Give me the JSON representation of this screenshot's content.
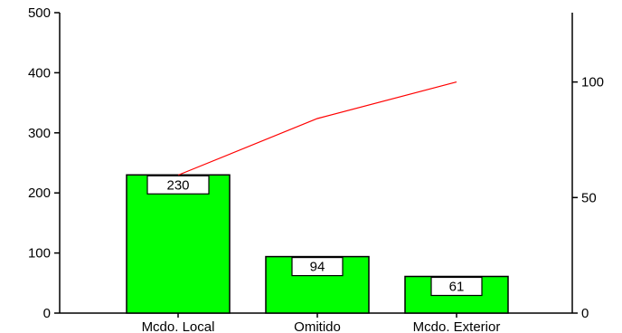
{
  "chart_data": {
    "type": "bar",
    "title": "",
    "xlabel": "",
    "ylabel": "",
    "categories": [
      "Mcdo. Local",
      "Omitido",
      "Mcdo. Exterior"
    ],
    "values": [
      230,
      94,
      61
    ],
    "data_labels": [
      "230",
      "94",
      "61"
    ],
    "ylim": [
      0,
      500
    ],
    "yticks": [
      0,
      100,
      200,
      300,
      400,
      500
    ],
    "y2lim": [
      0,
      130
    ],
    "y2ticks": [
      0,
      50,
      100
    ],
    "cumulative_percent": [
      59.7,
      84.2,
      100
    ],
    "grid": false,
    "legend": "none",
    "colors": {
      "bar": "#00ff00",
      "line": "#ff0000",
      "axis": "#000000"
    }
  }
}
